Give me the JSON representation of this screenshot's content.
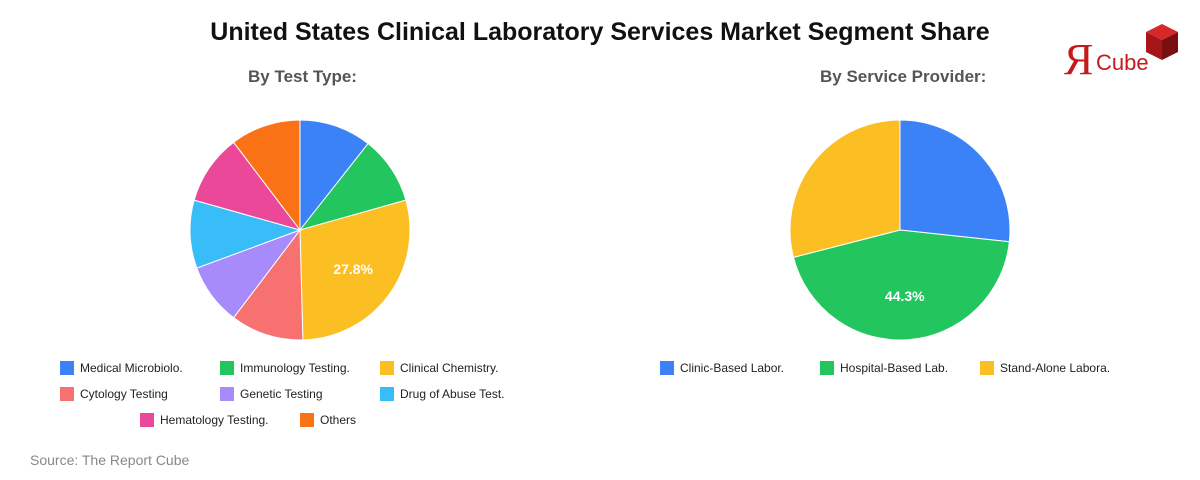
{
  "header": {
    "title": "United States Clinical Laboratory Services Market Segment Share",
    "logo_text": "ЯCube",
    "logo_color": "#c41a1a"
  },
  "source": "Source: The Report Cube",
  "chart_data": [
    {
      "type": "pie",
      "title": "By Test Type:",
      "labels": [
        "Medical Microbiolo.",
        "Immunology Testing.",
        "Clinical Chemistry.",
        "Cytology Testing",
        "Genetic Testing",
        "Drug of Abuse Test.",
        "Hematology Testing.",
        "Others"
      ],
      "values": [
        10.2,
        9.6,
        27.8,
        10.3,
        8.7,
        9.6,
        9.9,
        9.9
      ],
      "colors": [
        "#3b82f6",
        "#22c55e",
        "#fbbf24",
        "#f87171",
        "#a78bfa",
        "#38bdf8",
        "#ec4899",
        "#f97316"
      ],
      "data_labels": [
        null,
        null,
        "27.8%",
        null,
        null,
        null,
        null,
        null
      ],
      "legend_position": "bottom"
    },
    {
      "type": "pie",
      "title": "By Service Provider:",
      "labels": [
        "Clinic-Based Labor.",
        "Hospital-Based Lab.",
        "Stand-Alone Labora."
      ],
      "values": [
        26.7,
        44.3,
        29.0
      ],
      "colors": [
        "#3b82f6",
        "#22c55e",
        "#fbbf24"
      ],
      "data_labels": [
        null,
        "44.3%",
        null
      ],
      "legend_position": "bottom"
    }
  ]
}
